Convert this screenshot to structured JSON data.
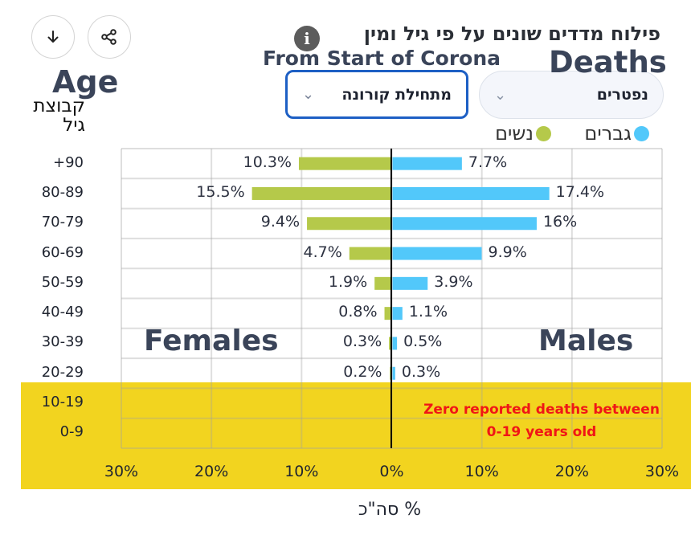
{
  "header": {
    "title": "פילוח מדדים שונים על פי גיל ומין",
    "info_icon": "info-icon",
    "download_icon": "download-arrow-icon",
    "share_icon": "share-icon",
    "overlay_from_start": "From Start of Corona",
    "overlay_deaths": "Deaths",
    "overlay_age": "Age",
    "overlay_females": "Females",
    "overlay_males": "Males"
  },
  "filters": {
    "period": {
      "value": "מתחילת קורונה",
      "chevron": "chevron-down-icon"
    },
    "metric": {
      "value": "נפטרים",
      "chevron": "chevron-down-icon"
    }
  },
  "colors": {
    "males": "#52c8fa",
    "females": "#b5c94a",
    "highlight": "#f2d41f",
    "note": "#f01616",
    "select_border_active": "#1d5fc4"
  },
  "chart_data": {
    "type": "bar",
    "orientation": "horizontal-butterfly",
    "title": "פילוח מדדים שונים על פי גיל ומין",
    "ylabel": "קבוצת גיל",
    "xlabel": "% סה\"כ",
    "xlim": [
      -30,
      30
    ],
    "x_ticks": [
      "30%",
      "20%",
      "10%",
      "0%",
      "10%",
      "20%",
      "30%"
    ],
    "grid": true,
    "legend": {
      "position": "top-right",
      "entries": [
        "גברים",
        "נשים"
      ]
    },
    "categories": [
      "+90",
      "80-89",
      "70-79",
      "60-69",
      "50-59",
      "40-49",
      "30-39",
      "20-29",
      "10-19",
      "0-9"
    ],
    "series": [
      {
        "name": "גברים",
        "side": "right",
        "values": [
          7.7,
          17.4,
          16,
          9.9,
          3.9,
          1.1,
          0.5,
          0.3,
          null,
          null
        ],
        "labels": [
          "7.7%",
          "17.4%",
          "16%",
          "9.9%",
          "3.9%",
          "1.1%",
          "0.5%",
          "0.3%",
          "",
          ""
        ]
      },
      {
        "name": "נשים",
        "side": "left",
        "values": [
          10.3,
          15.5,
          9.4,
          4.7,
          1.9,
          0.8,
          0.3,
          0.2,
          null,
          null
        ],
        "labels": [
          "10.3%",
          "15.5%",
          "9.4%",
          "4.7%",
          "1.9%",
          "0.8%",
          "0.3%",
          "0.2%",
          "",
          ""
        ]
      }
    ],
    "annotation": "Zero reported deaths between\n0-19 years old",
    "annotation_line1": "Zero reported deaths between",
    "annotation_line2": "0-19 years old"
  }
}
